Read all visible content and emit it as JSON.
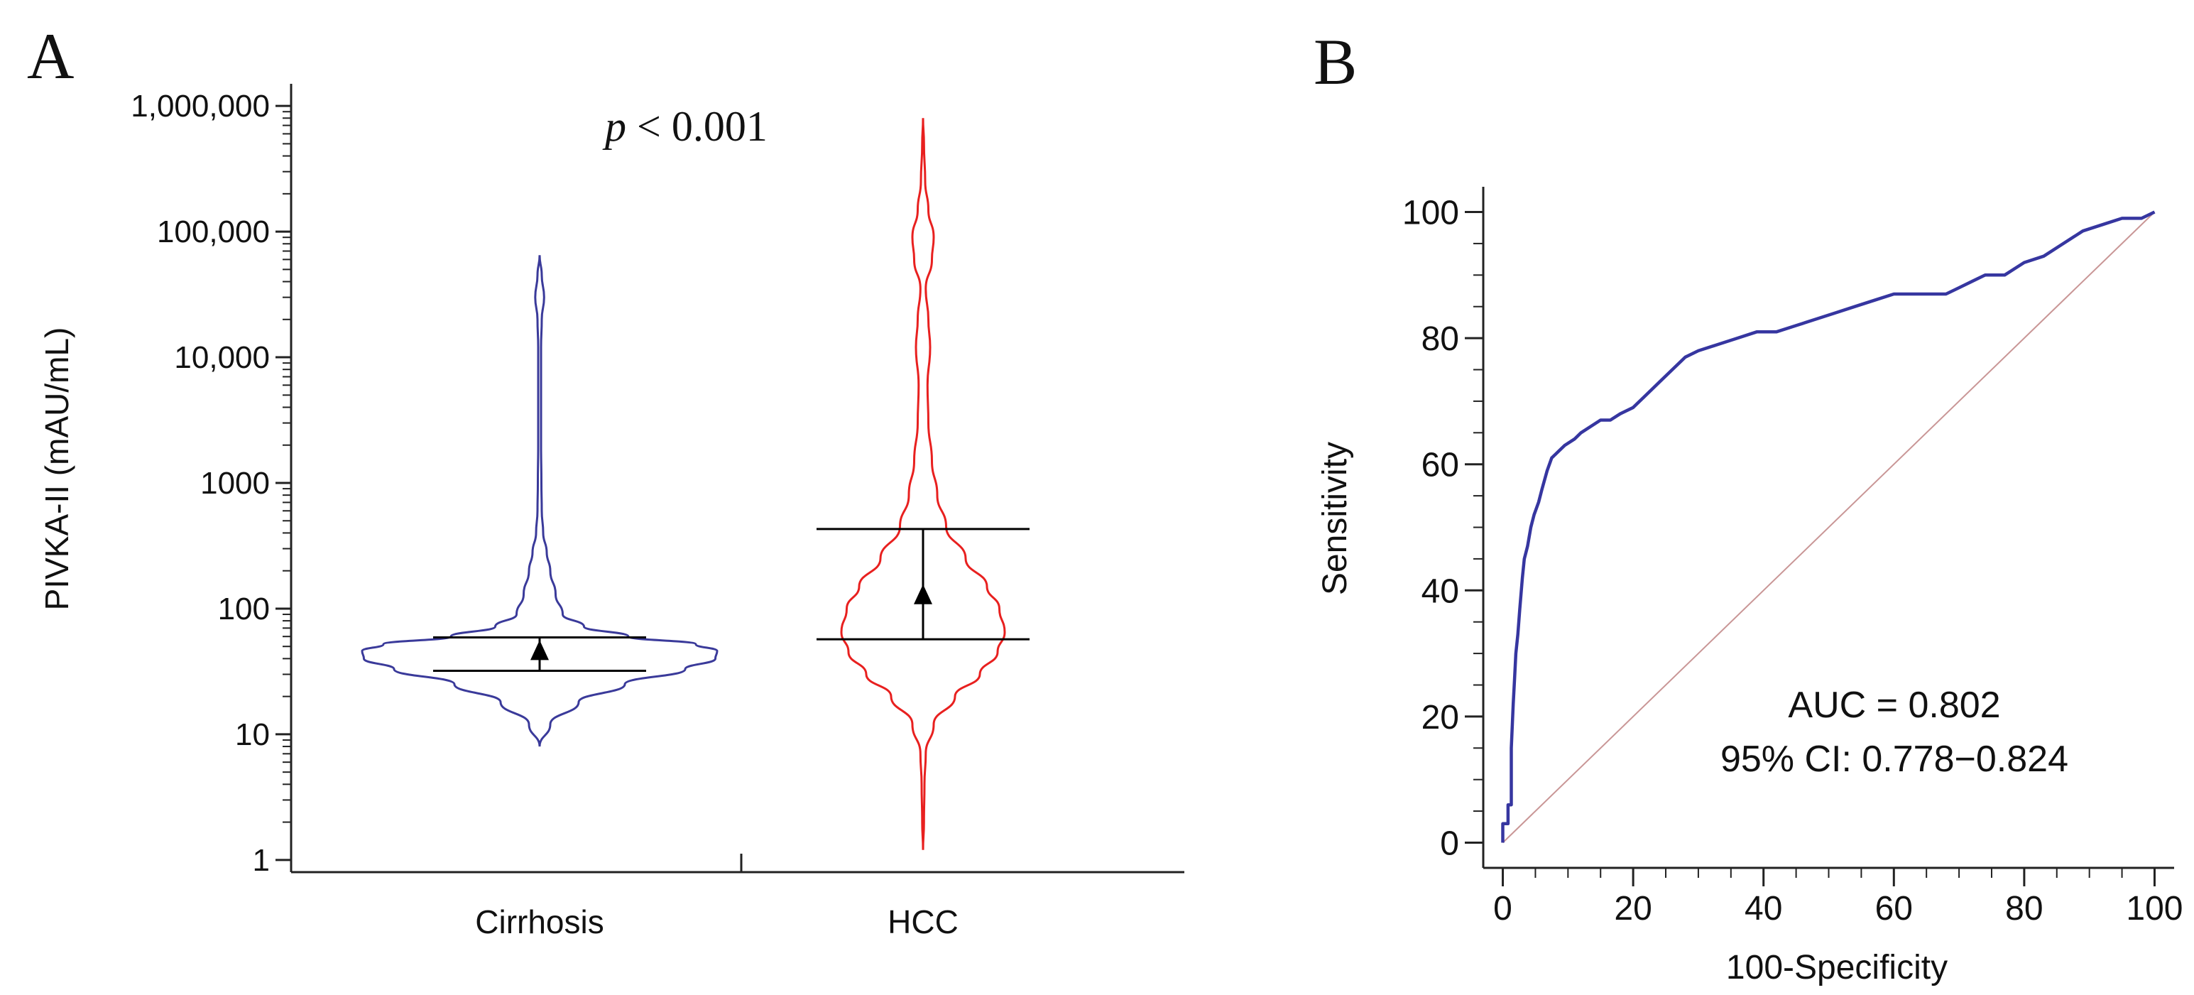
{
  "panel_a": {
    "label": "A",
    "p_value_italic": "p",
    "p_value_rest": " < 0.001"
  },
  "panel_b": {
    "label": "B"
  },
  "colors": {
    "cirrhosis": "#3a3a9a",
    "hcc": "#e8201f",
    "roc": "#3636a0",
    "diagonal": "#c99696",
    "axis": "#222222"
  },
  "chart_data": [
    {
      "type": "violin",
      "title": "",
      "xlabel": "",
      "ylabel": "PIVKA-II (mAU/mL)",
      "yscale": "log",
      "ylim": [
        0.8,
        1500000
      ],
      "y_ticks": [
        1,
        10,
        100,
        1000,
        10000,
        100000,
        1000000
      ],
      "y_tick_labels": [
        "1",
        "10",
        "100",
        "1000",
        "10,000",
        "100,000",
        "1,000,000"
      ],
      "categories": [
        "Cirrhosis",
        "HCC"
      ],
      "groups": [
        {
          "name": "Cirrhosis",
          "color": "#3a3a9a",
          "median": 45,
          "q1": 32,
          "q3": 59,
          "min": 8,
          "max": 65000,
          "density_profile": [
            [
              8,
              0.0
            ],
            [
              12,
              0.06
            ],
            [
              18,
              0.22
            ],
            [
              25,
              0.48
            ],
            [
              33,
              0.82
            ],
            [
              40,
              0.99
            ],
            [
              46,
              1.0
            ],
            [
              52,
              0.88
            ],
            [
              60,
              0.5
            ],
            [
              72,
              0.25
            ],
            [
              90,
              0.13
            ],
            [
              130,
              0.09
            ],
            [
              200,
              0.06
            ],
            [
              280,
              0.04
            ],
            [
              400,
              0.02
            ],
            [
              600,
              0.012
            ],
            [
              1000,
              0.01
            ],
            [
              2000,
              0.008
            ],
            [
              5000,
              0.008
            ],
            [
              12000,
              0.008
            ],
            [
              20000,
              0.012
            ],
            [
              30000,
              0.025
            ],
            [
              45000,
              0.012
            ],
            [
              65000,
              0.0
            ]
          ]
        },
        {
          "name": "HCC",
          "color": "#e8201f",
          "median": 125,
          "q1": 57,
          "q3": 430,
          "min": 1.2,
          "max": 800000,
          "density_profile": [
            [
              1.2,
              0.0
            ],
            [
              2,
              0.005
            ],
            [
              4,
              0.008
            ],
            [
              7,
              0.015
            ],
            [
              12,
              0.06
            ],
            [
              20,
              0.18
            ],
            [
              30,
              0.32
            ],
            [
              45,
              0.42
            ],
            [
              65,
              0.46
            ],
            [
              100,
              0.43
            ],
            [
              150,
              0.36
            ],
            [
              250,
              0.24
            ],
            [
              450,
              0.13
            ],
            [
              800,
              0.08
            ],
            [
              1500,
              0.05
            ],
            [
              3000,
              0.03
            ],
            [
              6000,
              0.025
            ],
            [
              12000,
              0.04
            ],
            [
              20000,
              0.03
            ],
            [
              35000,
              0.015
            ],
            [
              60000,
              0.05
            ],
            [
              90000,
              0.06
            ],
            [
              150000,
              0.03
            ],
            [
              250000,
              0.012
            ],
            [
              500000,
              0.005
            ],
            [
              800000,
              0.0
            ]
          ]
        }
      ]
    },
    {
      "type": "line",
      "title": "",
      "xlabel": "100-Specificity",
      "ylabel": "Sensitivity",
      "xlim": [
        -3,
        103
      ],
      "ylim": [
        -4,
        104
      ],
      "x_ticks": [
        0,
        20,
        40,
        60,
        80,
        100
      ],
      "y_ticks": [
        0,
        20,
        40,
        60,
        80,
        100
      ],
      "annotations": [
        "AUC = 0.802",
        "95% CI: 0.778−0.824"
      ],
      "series": [
        {
          "name": "ROC",
          "color": "#3636a0",
          "x": [
            0,
            0,
            0.8,
            0.8,
            1.3,
            1.3,
            1.6,
            1.8,
            2.0,
            2.3,
            2.6,
            3.0,
            3.3,
            3.8,
            4.3,
            4.8,
            5.5,
            6.0,
            6.8,
            7.5,
            8.5,
            9.5,
            11,
            12,
            13.5,
            15,
            16.5,
            18,
            20,
            22,
            24,
            26,
            28,
            30,
            33,
            36,
            39,
            42,
            45,
            48,
            51,
            54,
            57,
            60,
            63,
            66,
            68,
            70,
            72,
            74,
            77,
            80,
            83,
            86,
            89,
            92,
            95,
            98,
            100
          ],
          "y": [
            0,
            3,
            3,
            6,
            6,
            15,
            22,
            26,
            30,
            33,
            37,
            42,
            45,
            47,
            50,
            52,
            54,
            56,
            59,
            61,
            62,
            63,
            64,
            65,
            66,
            67,
            67,
            68,
            69,
            71,
            73,
            75,
            77,
            78,
            79,
            80,
            81,
            81,
            82,
            83,
            84,
            85,
            86,
            87,
            87,
            87,
            87,
            88,
            89,
            90,
            90,
            92,
            93,
            95,
            97,
            98,
            99,
            99,
            100
          ]
        },
        {
          "name": "Reference",
          "color": "#c99696",
          "x": [
            0,
            100
          ],
          "y": [
            0,
            100
          ]
        }
      ]
    }
  ]
}
